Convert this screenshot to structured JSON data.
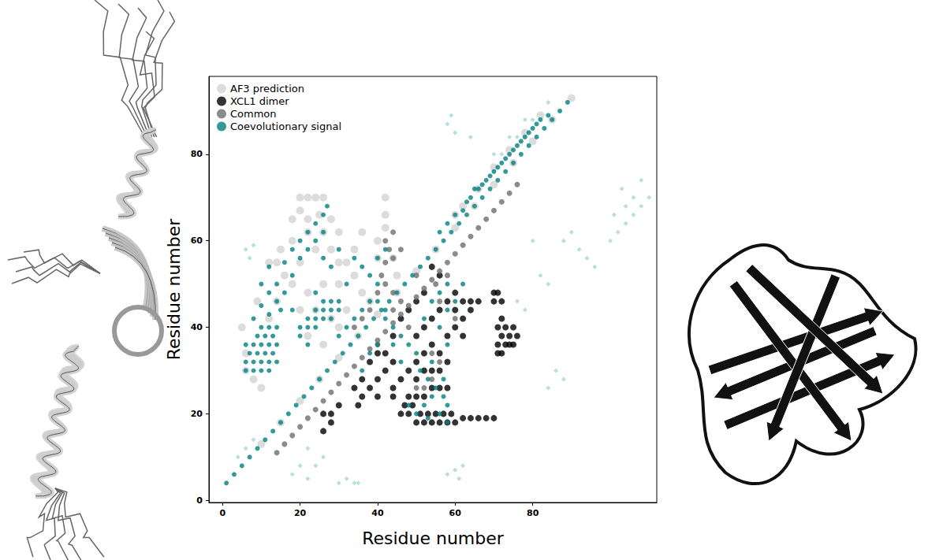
{
  "chart_data": {
    "type": "scatter",
    "xlabel": "Residue number",
    "ylabel": "Residue number",
    "xlim": [
      -3.5,
      112
    ],
    "ylim": [
      -0.5,
      98
    ],
    "xticks": [
      0,
      20,
      40,
      60,
      80
    ],
    "yticks": [
      0,
      20,
      40,
      60,
      80
    ],
    "grid": false,
    "legend": "upper left",
    "series": [
      {
        "name": "AF3 prediction",
        "color": "#d3d3d3",
        "marker": "circle",
        "x": [
          10,
          15,
          20,
          25,
          30,
          35,
          40,
          45,
          50,
          55,
          60,
          65,
          70,
          75,
          80,
          85,
          90,
          62,
          66,
          70,
          74,
          78,
          82,
          60,
          20,
          22,
          24,
          26,
          20,
          18,
          22,
          25,
          28,
          30,
          26,
          22,
          18,
          15,
          12,
          14,
          16,
          18,
          20,
          24,
          28,
          30,
          32,
          34,
          30,
          26,
          22,
          36,
          38,
          40,
          42,
          42,
          42,
          40,
          44,
          45,
          6,
          6,
          8,
          10,
          5,
          12,
          9,
          14,
          20,
          24,
          28,
          30,
          22,
          26,
          32,
          34,
          36
        ],
        "y": [
          13,
          18,
          23,
          28,
          33,
          38,
          43,
          48,
          53,
          58,
          63,
          68,
          73,
          78,
          83,
          88,
          93,
          68,
          72,
          77,
          81,
          85,
          89,
          66,
          70,
          70,
          70,
          70,
          67,
          65,
          65,
          66,
          65,
          62,
          62,
          62,
          60,
          58,
          55,
          55,
          52,
          50,
          55,
          58,
          58,
          55,
          55,
          52,
          50,
          50,
          48,
          48,
          46,
          60,
          63,
          66,
          70,
          56,
          56,
          52,
          34,
          30,
          28,
          26,
          40,
          42,
          46,
          46,
          44,
          44,
          42,
          40,
          38,
          36,
          44,
          58,
          62
        ]
      },
      {
        "name": "XCL1 dimer",
        "color": "#000000",
        "marker": "circle",
        "x": [
          46,
          47,
          48,
          49,
          50,
          51,
          52,
          53,
          54,
          55,
          56,
          57,
          58,
          59,
          60,
          62,
          64,
          66,
          68,
          70,
          48,
          50,
          52,
          54,
          56,
          58,
          50,
          52,
          54,
          56,
          58,
          52,
          54,
          56,
          50,
          48,
          46,
          44,
          44,
          58,
          60,
          62,
          64,
          66,
          62,
          60,
          58,
          56,
          54,
          52,
          50,
          60,
          56,
          54,
          52,
          50,
          64,
          62,
          71,
          72,
          73,
          74,
          75,
          76,
          74,
          72,
          71,
          75,
          73,
          71,
          72,
          70,
          71,
          72,
          70,
          35,
          36,
          38,
          40,
          38,
          40,
          42,
          36,
          34,
          40,
          42,
          44,
          26,
          28,
          28,
          30,
          26,
          46,
          48,
          44
        ],
        "y": [
          20,
          22,
          20,
          22,
          18,
          20,
          18,
          20,
          18,
          20,
          18,
          20,
          18,
          20,
          18,
          19,
          19,
          19,
          19,
          19,
          24,
          24,
          24,
          26,
          26,
          26,
          28,
          30,
          30,
          30,
          32,
          34,
          36,
          34,
          32,
          30,
          28,
          26,
          24,
          38,
          40,
          42,
          44,
          46,
          46,
          44,
          46,
          44,
          42,
          40,
          38,
          48,
          52,
          54,
          48,
          46,
          46,
          38,
          34,
          34,
          36,
          36,
          36,
          38,
          38,
          38,
          36,
          40,
          40,
          40,
          42,
          46,
          48,
          46,
          48,
          22,
          24,
          26,
          28,
          32,
          34,
          30,
          28,
          26,
          24,
          34,
          32,
          16,
          18,
          20,
          22,
          20,
          42,
          44,
          38
        ]
      },
      {
        "name": "Common",
        "color": "#6e6e6e",
        "marker": "circle",
        "x": [
          14,
          16,
          18,
          20,
          22,
          24,
          26,
          28,
          30,
          32,
          34,
          36,
          38,
          40,
          42,
          44,
          46,
          48,
          50,
          52,
          54,
          56,
          58,
          60,
          62,
          64,
          66,
          68,
          70,
          72,
          74,
          76,
          42,
          44,
          43,
          42,
          44,
          46,
          41,
          38,
          36,
          34,
          40,
          42,
          44,
          50,
          52,
          54,
          56,
          54,
          48,
          46,
          56,
          55,
          50,
          60,
          58,
          44,
          40
        ],
        "y": [
          11,
          13,
          15,
          17,
          19,
          21,
          23,
          25,
          27,
          29,
          31,
          33,
          35,
          37,
          39,
          41,
          43,
          45,
          47,
          49,
          51,
          53,
          55,
          57,
          59,
          61,
          63,
          65,
          67,
          69,
          71,
          73,
          55,
          56,
          58,
          60,
          62,
          58,
          52,
          44,
          42,
          40,
          48,
          50,
          48,
          26,
          26,
          28,
          32,
          34,
          40,
          46,
          46,
          50,
          52,
          42,
          52,
          44,
          36
        ]
      },
      {
        "name": "Coevolutionary signal",
        "color": "#008080",
        "marker": "circle",
        "x": [
          1,
          3,
          5,
          7,
          9,
          11,
          13,
          15,
          17,
          19,
          21,
          23,
          25,
          27,
          29,
          31,
          33,
          35,
          37,
          39,
          41,
          43,
          45,
          47,
          49,
          51,
          53,
          55,
          57,
          59,
          61,
          63,
          65,
          67,
          69,
          71,
          73,
          75,
          77,
          79,
          81,
          83,
          85,
          87,
          89,
          62,
          64,
          66,
          68,
          70,
          72,
          74,
          76,
          78,
          80,
          82,
          84,
          63,
          67,
          71,
          75,
          79,
          65,
          69,
          73,
          77,
          81,
          60,
          58,
          56,
          6,
          8,
          10,
          12,
          6,
          8,
          10,
          12,
          14,
          7,
          9,
          11,
          13,
          6,
          8,
          10,
          12,
          14,
          9,
          11,
          13,
          10,
          12,
          14,
          8,
          12,
          15,
          10,
          14,
          12,
          16,
          10,
          14,
          18,
          12,
          16,
          20,
          22,
          24,
          26,
          24,
          26,
          27,
          22,
          20,
          18,
          20,
          22,
          24,
          22,
          24,
          26,
          28,
          24,
          26,
          28,
          30,
          26,
          28,
          30,
          20,
          22,
          30,
          32,
          34,
          36,
          38,
          40,
          42,
          40,
          38,
          36,
          34,
          30,
          28,
          32,
          24,
          18,
          40,
          42,
          26,
          48,
          50,
          52,
          54,
          56,
          58,
          55,
          53,
          51,
          57,
          54,
          50,
          48,
          46,
          44,
          42,
          56,
          58,
          60,
          56,
          58,
          54,
          52,
          62,
          58,
          44,
          46,
          40,
          38,
          36,
          58,
          57,
          53
        ],
        "y": [
          4,
          6,
          8,
          10,
          12,
          14,
          16,
          18,
          20,
          22,
          24,
          26,
          28,
          30,
          32,
          34,
          36,
          38,
          40,
          42,
          44,
          46,
          48,
          50,
          52,
          54,
          56,
          58,
          60,
          62,
          64,
          66,
          68,
          70,
          72,
          74,
          76,
          78,
          80,
          82,
          84,
          86,
          88,
          90,
          92,
          67,
          70,
          72,
          74,
          76,
          78,
          80,
          82,
          84,
          86,
          88,
          89,
          69,
          73,
          77,
          81,
          85,
          72,
          75,
          79,
          83,
          87,
          66,
          64,
          62,
          30,
          30,
          30,
          30,
          32,
          32,
          32,
          32,
          32,
          34,
          34,
          34,
          34,
          36,
          36,
          36,
          36,
          36,
          38,
          38,
          38,
          40,
          40,
          40,
          42,
          43,
          44,
          45,
          46,
          48,
          48,
          50,
          50,
          52,
          54,
          55,
          56,
          58,
          60,
          62,
          64,
          66,
          68,
          62,
          60,
          58,
          40,
          40,
          40,
          42,
          42,
          42,
          42,
          44,
          44,
          44,
          44,
          46,
          46,
          46,
          38,
          36,
          38,
          40,
          42,
          44,
          46,
          46,
          44,
          50,
          52,
          54,
          56,
          58,
          54,
          50,
          48,
          44,
          56,
          58,
          56,
          22,
          20,
          22,
          24,
          20,
          22,
          26,
          28,
          30,
          28,
          32,
          34,
          36,
          38,
          40,
          42,
          40,
          44,
          46,
          48,
          50,
          46,
          42,
          50,
          36,
          36,
          32,
          36,
          34,
          30,
          18,
          24,
          19
        ]
      },
      {
        "color": "#a9d6d6",
        "marker": "diamond",
        "x": [
          6,
          7,
          8,
          18,
          20,
          22,
          24,
          26,
          22,
          30,
          32,
          34,
          35,
          6,
          8,
          4,
          58,
          60,
          61,
          62,
          60,
          58,
          59,
          64,
          76,
          78,
          80,
          88,
          90,
          102,
          104,
          106,
          108,
          110,
          104,
          106,
          103,
          101,
          108,
          100,
          92,
          94,
          96,
          84,
          86,
          88,
          82,
          84,
          72,
          76,
          80,
          84,
          70,
          74,
          78
        ],
        "y": [
          58,
          56,
          59,
          6,
          8,
          5,
          8,
          10,
          12,
          4,
          5,
          4,
          4,
          12,
          14,
          10,
          6,
          7,
          5,
          8,
          85,
          87,
          89,
          84,
          46,
          44,
          60,
          60,
          62,
          62,
          64,
          66,
          68,
          70,
          68,
          70,
          72,
          66,
          74,
          60,
          58,
          56,
          54,
          26,
          30,
          28,
          52,
          50,
          80,
          84,
          88,
          92,
          80,
          84,
          88
        ]
      }
    ]
  }
}
